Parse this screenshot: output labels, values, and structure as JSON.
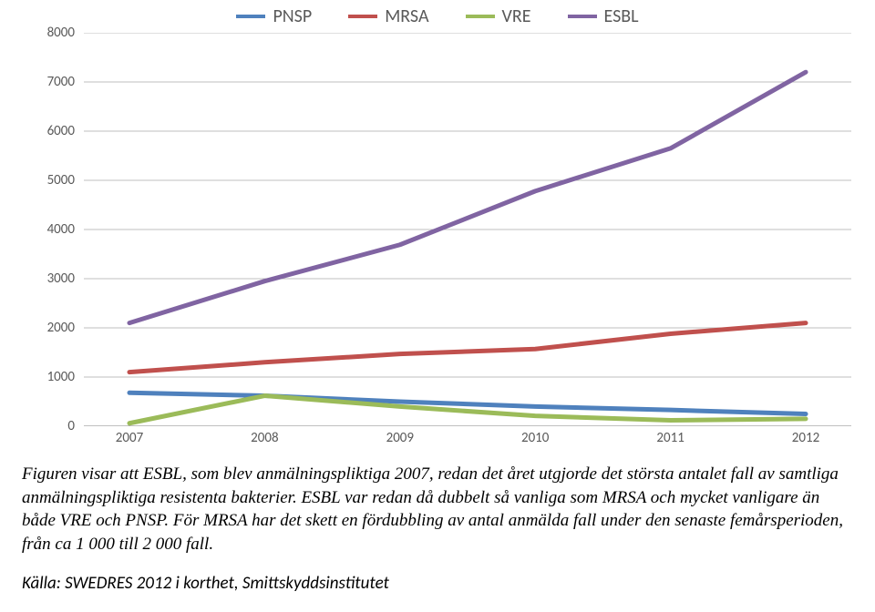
{
  "chart": {
    "type": "line",
    "background_color": "#ffffff",
    "grid_color": "#bfbfbf",
    "axis_color": "#808080",
    "tick_font_color": "#595959",
    "legend_font_size": 20,
    "tick_font_size": 15,
    "x": {
      "categories": [
        "2007",
        "2008",
        "2009",
        "2010",
        "2011",
        "2012"
      ]
    },
    "y": {
      "min": 0,
      "max": 8000,
      "step": 1000,
      "ticks": [
        "0",
        "1000",
        "2000",
        "3000",
        "4000",
        "5000",
        "6000",
        "7000",
        "8000"
      ]
    },
    "line_width": 5,
    "series": [
      {
        "name": "PNSP",
        "color": "#4f81bd",
        "values": [
          680,
          620,
          500,
          400,
          330,
          250
        ]
      },
      {
        "name": "MRSA",
        "color": "#c0504d",
        "values": [
          1100,
          1300,
          1470,
          1570,
          1880,
          2100
        ]
      },
      {
        "name": "VRE",
        "color": "#9bbb59",
        "values": [
          60,
          620,
          400,
          210,
          120,
          150
        ]
      },
      {
        "name": "ESBL",
        "color": "#8064a2",
        "values": [
          2100,
          2950,
          3690,
          4780,
          5650,
          7200
        ]
      }
    ]
  },
  "caption": {
    "p1_a": "Figuren visar att ESBL, som blev anmälningspliktiga 2007, redan det året utgjorde det största antalet fall av samtliga anmälningspliktiga resistenta bakterier. ESBL var redan då dubbelt så vanliga som MRSA och mycket vanligare än både VRE och PNSP. För MRSA har det skett en fördubbling av antal anmälda fall under den senaste femårsperioden, från ca 1",
    "nbsp": " ",
    "p1_b": "000 till 2",
    "p1_c": "000 fall."
  },
  "source": "Källa: SWEDRES 2012 i korthet, Smittskyddsinstitutet"
}
